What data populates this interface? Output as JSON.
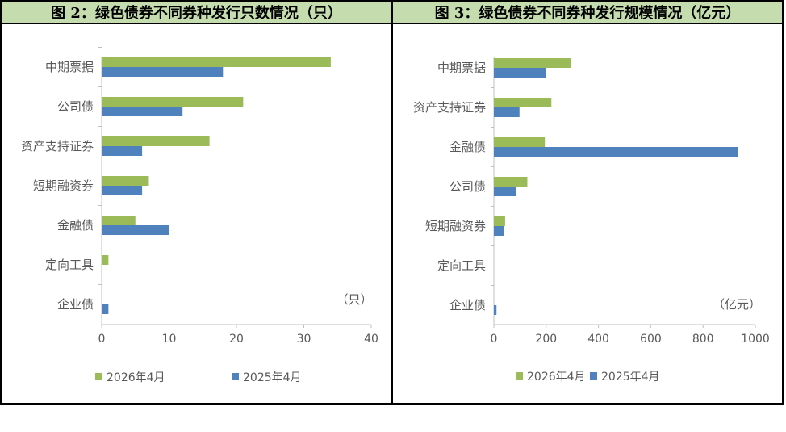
{
  "panels": [
    {
      "header": "图 2：绿色债券不同券种发行只数情况（只）",
      "unit_note": "（只）",
      "legend": [
        "2026年4月",
        "2025年4月"
      ]
    },
    {
      "header": "图 3：绿色债券不同券种发行规模情况（亿元）",
      "unit_note": "（亿元）",
      "legend": [
        "2026年4月",
        "2025年4月"
      ]
    }
  ],
  "colors": {
    "green": "#9bbb59",
    "blue": "#4f81bd",
    "header_bg": "#c4dcae"
  },
  "chart_data": [
    {
      "type": "bar",
      "orientation": "horizontal",
      "categories": [
        "中期票据",
        "公司债",
        "资产支持证券",
        "短期融资券",
        "金融债",
        "定向工具",
        "企业债"
      ],
      "series": [
        {
          "name": "2026年4月",
          "color": "#9bbb59",
          "values": [
            34,
            21,
            16,
            7,
            5,
            1,
            0
          ]
        },
        {
          "name": "2025年4月",
          "color": "#4f81bd",
          "values": [
            18,
            12,
            6,
            6,
            10,
            0,
            1
          ]
        }
      ],
      "xlim": [
        0,
        40
      ],
      "xticks": [
        0,
        10,
        20,
        30,
        40
      ],
      "legend_position": "bottom"
    },
    {
      "type": "bar",
      "orientation": "horizontal",
      "categories": [
        "中期票据",
        "资产支持证券",
        "金融债",
        "公司债",
        "短期融资券",
        "定向工具",
        "企业债"
      ],
      "series": [
        {
          "name": "2026年4月",
          "color": "#9bbb59",
          "values": [
            295,
            220,
            195,
            128,
            43,
            0,
            0
          ]
        },
        {
          "name": "2025年4月",
          "color": "#4f81bd",
          "values": [
            200,
            98,
            935,
            85,
            38,
            0,
            10
          ]
        }
      ],
      "xlim": [
        0,
        1000
      ],
      "xticks": [
        0,
        200,
        400,
        600,
        800,
        1000
      ],
      "legend_position": "bottom"
    }
  ]
}
